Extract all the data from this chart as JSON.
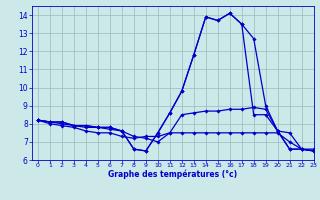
{
  "xlabel": "Graphe des températures (°c)",
  "background_color": "#cce8e8",
  "line_color": "#0000cc",
  "grid_color": "#99bbbb",
  "xlim": [
    -0.5,
    23
  ],
  "ylim": [
    6,
    14.5
  ],
  "xticks": [
    0,
    1,
    2,
    3,
    4,
    5,
    6,
    7,
    8,
    9,
    10,
    11,
    12,
    13,
    14,
    15,
    16,
    17,
    18,
    19,
    20,
    21,
    22,
    23
  ],
  "yticks": [
    6,
    7,
    8,
    9,
    10,
    11,
    12,
    13,
    14
  ],
  "series": [
    [
      8.2,
      8.1,
      8.1,
      7.9,
      7.9,
      7.8,
      7.8,
      7.6,
      6.6,
      6.5,
      7.5,
      8.6,
      9.8,
      11.8,
      13.9,
      13.7,
      14.1,
      13.5,
      12.7,
      9.0,
      7.6,
      6.6,
      6.6,
      6.5
    ],
    [
      8.2,
      8.1,
      8.1,
      7.9,
      7.9,
      7.8,
      7.8,
      7.6,
      6.6,
      6.5,
      7.5,
      8.6,
      9.8,
      11.8,
      13.9,
      13.7,
      14.1,
      13.5,
      8.5,
      8.5,
      7.6,
      7.5,
      6.6,
      6.6
    ],
    [
      8.2,
      8.1,
      8.0,
      7.9,
      7.8,
      7.8,
      7.7,
      7.6,
      7.3,
      7.2,
      7.0,
      7.5,
      8.5,
      8.6,
      8.7,
      8.7,
      8.8,
      8.8,
      8.9,
      8.8,
      7.6,
      6.6,
      6.6,
      6.5
    ],
    [
      8.2,
      8.0,
      7.9,
      7.8,
      7.6,
      7.5,
      7.5,
      7.3,
      7.2,
      7.3,
      7.3,
      7.5,
      7.5,
      7.5,
      7.5,
      7.5,
      7.5,
      7.5,
      7.5,
      7.5,
      7.5,
      7.0,
      6.6,
      6.5
    ]
  ]
}
